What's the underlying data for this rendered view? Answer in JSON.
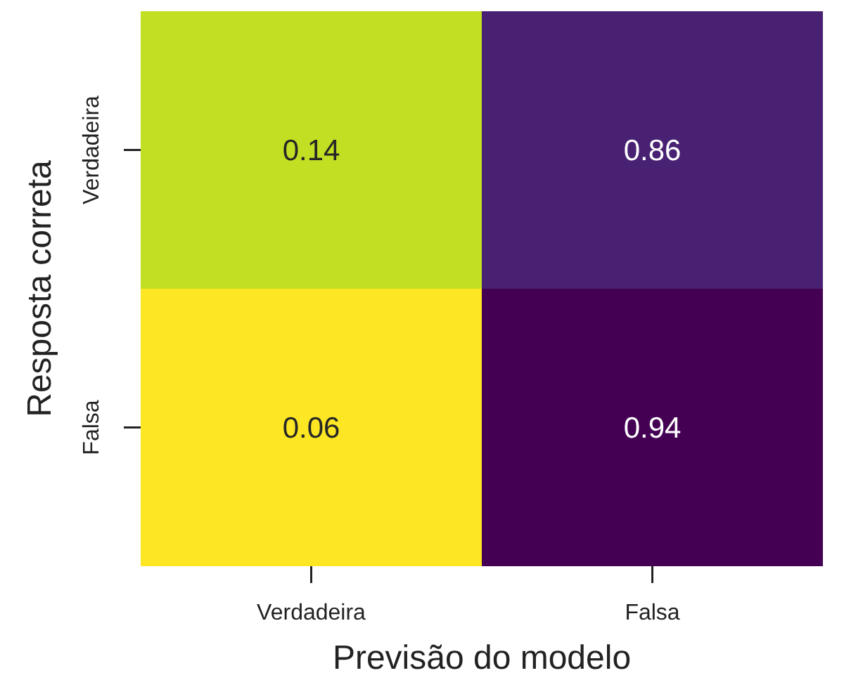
{
  "chart_data": {
    "type": "heatmap",
    "xlabel": "Previsão do modelo",
    "ylabel": "Resposta correta",
    "categories": [
      "Verdadeira",
      "Falsa"
    ],
    "y_categories": [
      "Verdadeira",
      "Falsa"
    ],
    "cells": [
      [
        0.14,
        0.86
      ],
      [
        0.06,
        0.94
      ]
    ],
    "data_labels": true
  }
}
